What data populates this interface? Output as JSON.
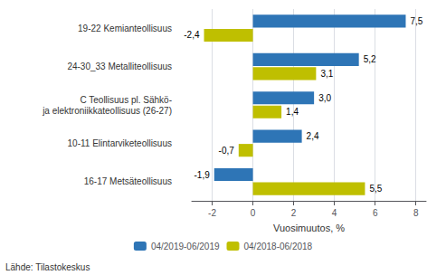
{
  "chart_data": {
    "type": "bar",
    "orientation": "horizontal",
    "categories": [
      "19-22 Kemianteollisuus",
      "24-30_33 Metalliteollisuus",
      "C Teollisuus pl. Sähkö-\nja elektroniikkateollisuus (26-27)",
      "10-11 Elintarviketeollisuus",
      "16-17 Metsäteollisuus"
    ],
    "series": [
      {
        "name": "04/2019-06/2019",
        "color": "#2E75B6",
        "values": [
          7.5,
          5.2,
          3.0,
          2.4,
          -1.9
        ],
        "value_labels": [
          "7,5",
          "5,2",
          "3,0",
          "2,4",
          "-1,9"
        ]
      },
      {
        "name": "04/2018-06/2018",
        "color": "#BFBF00",
        "values": [
          -2.4,
          3.1,
          1.4,
          -0.7,
          5.5
        ],
        "value_labels": [
          "-2,4",
          "3,1",
          "1,4",
          "-0,7",
          "5,5"
        ]
      }
    ],
    "xlabel": "Vuosimuutos, %",
    "xlim": [
      -3,
      8.5
    ],
    "xticks": [
      -2,
      0,
      2,
      4,
      6,
      8
    ],
    "grid": true,
    "data_labels": true,
    "legend": "bottom",
    "annotations": [
      "Lähde: Tilastokeskus"
    ]
  }
}
